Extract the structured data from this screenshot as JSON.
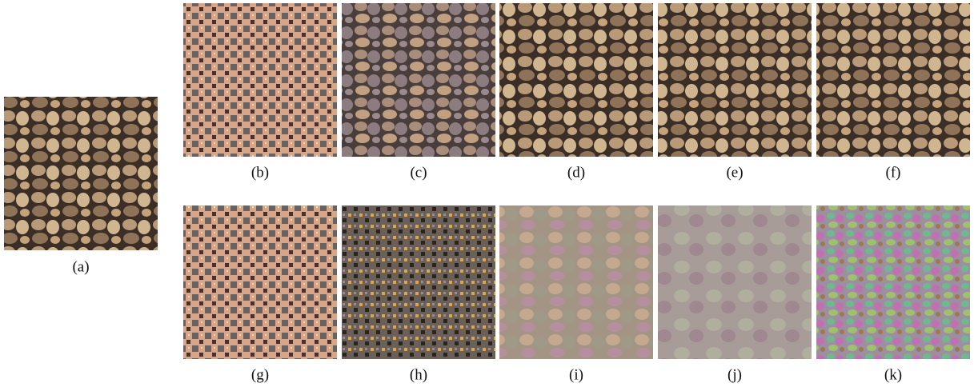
{
  "figure": {
    "panels": [
      {
        "label": "(a)"
      },
      {
        "label": "(b)"
      },
      {
        "label": "(c)"
      },
      {
        "label": "(d)"
      },
      {
        "label": "(e)"
      },
      {
        "label": "(f)"
      },
      {
        "label": "(g)"
      },
      {
        "label": "(h)"
      },
      {
        "label": "(i)"
      },
      {
        "label": "(j)"
      },
      {
        "label": "(k)"
      }
    ]
  }
}
